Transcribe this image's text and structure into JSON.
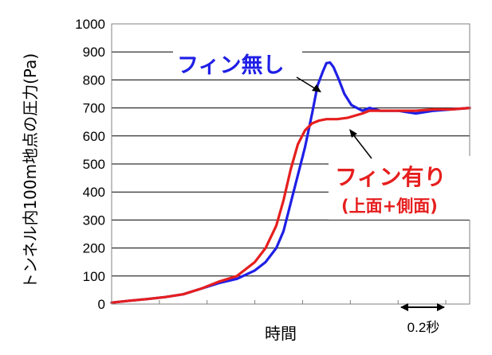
{
  "chart_data": {
    "type": "line",
    "ylabel": "トンネル内100m地点の圧力(Pa)",
    "xlabel": "時間",
    "ylim": [
      0,
      1000
    ],
    "yticks": [
      0,
      100,
      200,
      300,
      400,
      500,
      600,
      700,
      800,
      900,
      1000
    ],
    "grid": true,
    "scale_bar": {
      "label": "0.2秒"
    },
    "series": [
      {
        "name": "フィン無し",
        "color": "#1f1fe6",
        "x": [
          0,
          0.05,
          0.1,
          0.15,
          0.2,
          0.25,
          0.3,
          0.35,
          0.4,
          0.43,
          0.46,
          0.48,
          0.5,
          0.52,
          0.54,
          0.56,
          0.575,
          0.59,
          0.6,
          0.61,
          0.62,
          0.635,
          0.65,
          0.67,
          0.7,
          0.72,
          0.75,
          0.8,
          0.85,
          0.9,
          0.95,
          1.0
        ],
        "values": [
          5,
          12,
          18,
          25,
          35,
          55,
          75,
          90,
          120,
          150,
          200,
          260,
          360,
          460,
          560,
          680,
          780,
          830,
          860,
          862,
          845,
          800,
          750,
          710,
          690,
          700,
          690,
          690,
          680,
          690,
          695,
          700
        ]
      },
      {
        "name": "フィン有り",
        "color": "#e61e1e",
        "x": [
          0,
          0.05,
          0.1,
          0.15,
          0.2,
          0.25,
          0.3,
          0.35,
          0.4,
          0.43,
          0.46,
          0.48,
          0.5,
          0.52,
          0.54,
          0.56,
          0.58,
          0.6,
          0.63,
          0.66,
          0.7,
          0.72,
          0.75,
          0.8,
          0.85,
          0.9,
          0.95,
          1.0
        ],
        "values": [
          5,
          12,
          18,
          25,
          35,
          55,
          80,
          100,
          150,
          200,
          280,
          370,
          480,
          570,
          620,
          645,
          655,
          660,
          660,
          665,
          680,
          690,
          690,
          690,
          690,
          695,
          695,
          700
        ]
      }
    ],
    "annotations": [
      {
        "text": "フィン無し",
        "color": "#1f1fe6"
      },
      {
        "text": "フィン有り",
        "color": "#e61e1e"
      },
      {
        "text": "(上面+側面)",
        "color": "#e61e1e"
      }
    ]
  }
}
